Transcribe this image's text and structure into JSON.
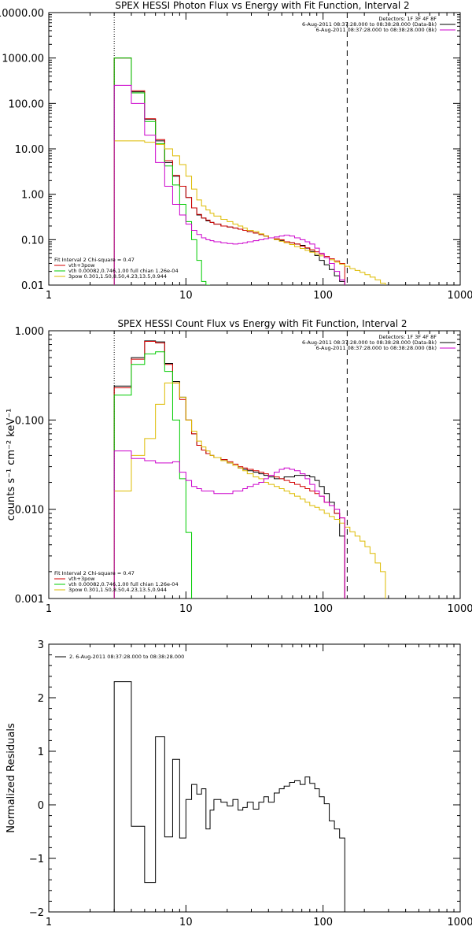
{
  "chart_data": [
    {
      "type": "line",
      "title": "SPEX HESSI Photon Flux vs Energy with Fit Function, Interval 2",
      "xlabel": "",
      "ylabel": "",
      "xlim": [
        1,
        1000
      ],
      "ylim": [
        0.01,
        10000
      ],
      "xscale": "log",
      "yscale": "log",
      "xticks": [
        "1",
        "10",
        "100",
        "1000"
      ],
      "yticks": [
        "0.01",
        "0.10",
        "1.00",
        "10.00",
        "100.00",
        "1000.00",
        "10000.00"
      ],
      "vlines": [
        {
          "x": 3,
          "style": "dotted"
        },
        {
          "x": 150,
          "style": "dashed"
        }
      ],
      "legend_top_right": {
        "header": "Detectors: 1F 3F 4F 8F",
        "entries": [
          {
            "text": "6-Aug-2011 08:37:28.000 to 08:38:28.000 (Data-Bk)",
            "color": "#000000"
          },
          {
            "text": "6-Aug-2011 08:37:28.000 to 08:38:28.000 (Bk)",
            "color": "#cc00cc"
          }
        ]
      },
      "legend_bottom_left": {
        "header": "Fit Interval 2   Chi-square = 0.47",
        "entries": [
          {
            "text": "vth+3pow",
            "color": "#d40000"
          },
          {
            "text": "vth 0.00082,0.746,1.00   full chian 1.26e-04",
            "color": "#00cc00"
          },
          {
            "text": "3pow 0.301,1.50,8.50,4.23,13.5,0.944",
            "color": "#ddbb00"
          }
        ]
      },
      "edges": [
        3,
        4,
        5,
        6,
        7,
        8,
        9,
        10,
        11,
        12,
        13,
        14,
        15,
        16,
        18,
        20,
        22,
        24,
        26,
        28,
        31,
        34,
        37,
        40,
        44,
        48,
        52,
        57,
        62,
        68,
        74,
        80,
        87,
        94,
        102,
        111,
        121,
        132,
        144,
        157,
        171,
        186,
        202,
        220,
        240,
        262,
        285
      ],
      "series": [
        {
          "name": "Data-Bk",
          "color": "#000000",
          "values": [
            1000,
            180,
            45,
            15,
            5,
            2.5,
            1.5,
            0.85,
            0.5,
            0.35,
            0.3,
            0.26,
            0.24,
            0.22,
            0.2,
            0.19,
            0.18,
            0.17,
            0.16,
            0.15,
            0.14,
            0.13,
            0.12,
            0.11,
            0.1,
            0.095,
            0.09,
            0.085,
            0.08,
            0.075,
            0.065,
            0.055,
            0.045,
            0.035,
            0.028,
            0.022,
            0.016,
            0.012
          ]
        },
        {
          "name": "vth+3pow",
          "color": "#d40000",
          "values": [
            1000,
            190,
            46,
            16,
            5.5,
            2.6,
            1.5,
            0.85,
            0.5,
            0.36,
            0.3,
            0.27,
            0.24,
            0.22,
            0.2,
            0.19,
            0.18,
            0.17,
            0.16,
            0.15,
            0.14,
            0.13,
            0.12,
            0.11,
            0.105,
            0.1,
            0.09,
            0.085,
            0.08,
            0.072,
            0.066,
            0.06,
            0.054,
            0.048,
            0.043,
            0.038,
            0.034,
            0.03
          ]
        },
        {
          "name": "vth",
          "color": "#00cc00",
          "values": [
            1000,
            170,
            40,
            13,
            4.2,
            1.6,
            0.6,
            0.25,
            0.1,
            0.035,
            0.012,
            0.005
          ]
        },
        {
          "name": "3pow",
          "color": "#ddbb00",
          "values": [
            15,
            15,
            14,
            12.5,
            10,
            7,
            4.5,
            2.5,
            1.3,
            0.75,
            0.55,
            0.45,
            0.38,
            0.33,
            0.28,
            0.25,
            0.22,
            0.2,
            0.18,
            0.16,
            0.15,
            0.135,
            0.12,
            0.11,
            0.1,
            0.092,
            0.085,
            0.078,
            0.07,
            0.064,
            0.058,
            0.053,
            0.048,
            0.044,
            0.04,
            0.036,
            0.032,
            0.029,
            0.026,
            0.023,
            0.021,
            0.019,
            0.017,
            0.015,
            0.013,
            0.011
          ]
        },
        {
          "name": "Bk",
          "color": "#cc00cc",
          "values": [
            250,
            100,
            20,
            5,
            1.5,
            0.6,
            0.35,
            0.22,
            0.16,
            0.13,
            0.11,
            0.1,
            0.095,
            0.09,
            0.085,
            0.082,
            0.08,
            0.082,
            0.085,
            0.09,
            0.095,
            0.1,
            0.105,
            0.11,
            0.115,
            0.12,
            0.125,
            0.12,
            0.11,
            0.1,
            0.09,
            0.08,
            0.065,
            0.05,
            0.04,
            0.03,
            0.02,
            0.013
          ]
        }
      ]
    },
    {
      "type": "line",
      "title": "SPEX HESSI Count Flux vs Energy with Fit Function, Interval 2",
      "xlabel": "",
      "ylabel": "counts s⁻¹ cm⁻² keV⁻¹",
      "xlim": [
        1,
        1000
      ],
      "ylim": [
        0.001,
        1
      ],
      "xscale": "log",
      "yscale": "log",
      "xticks": [
        "1",
        "10",
        "100",
        "1000"
      ],
      "yticks": [
        "0.001",
        "0.010",
        "0.100",
        "1.000"
      ],
      "vlines": [
        {
          "x": 3,
          "style": "dotted"
        },
        {
          "x": 150,
          "style": "dashed"
        }
      ],
      "legend_top_right": {
        "header": "Detectors: 1F 3F 4F 8F",
        "entries": [
          {
            "text": "6-Aug-2011 08:37:28.000 to 08:38:28.000 (Data-Bk)",
            "color": "#000000"
          },
          {
            "text": "6-Aug-2011 08:37:28.000 to 08:38:28.000 (Bk)",
            "color": "#cc00cc"
          }
        ]
      },
      "legend_bottom_left": {
        "header": "Fit Interval 2   Chi-square = 0.47",
        "entries": [
          {
            "text": "vth+3pow",
            "color": "#d40000"
          },
          {
            "text": "vth 0.00082,0.746,1.00   full chian 1.26e-04",
            "color": "#00cc00"
          },
          {
            "text": "3pow 0.301,1.50,8.50,4.23,13.5,0.944",
            "color": "#ddbb00"
          }
        ]
      },
      "edges": [
        3,
        4,
        5,
        6,
        7,
        8,
        9,
        10,
        11,
        12,
        13,
        14,
        15,
        16,
        18,
        20,
        22,
        24,
        26,
        28,
        31,
        34,
        37,
        40,
        44,
        48,
        52,
        57,
        62,
        68,
        74,
        80,
        87,
        94,
        102,
        111,
        121,
        132,
        144,
        157,
        171,
        186,
        202,
        220,
        240,
        262,
        285
      ],
      "series": [
        {
          "name": "Data-Bk",
          "color": "#000000",
          "values": [
            0.24,
            0.5,
            0.77,
            0.75,
            0.43,
            0.27,
            0.18,
            0.1,
            0.07,
            0.052,
            0.046,
            0.042,
            0.04,
            0.038,
            0.036,
            0.033,
            0.031,
            0.029,
            0.028,
            0.027,
            0.026,
            0.025,
            0.024,
            0.023,
            0.022,
            0.022,
            0.023,
            0.023,
            0.024,
            0.024,
            0.024,
            0.023,
            0.021,
            0.018,
            0.015,
            0.012,
            0.009,
            0.005
          ]
        },
        {
          "name": "vth+3pow",
          "color": "#d40000",
          "values": [
            0.23,
            0.48,
            0.76,
            0.73,
            0.42,
            0.26,
            0.17,
            0.1,
            0.07,
            0.052,
            0.046,
            0.042,
            0.04,
            0.038,
            0.036,
            0.034,
            0.032,
            0.03,
            0.029,
            0.028,
            0.027,
            0.026,
            0.025,
            0.024,
            0.023,
            0.022,
            0.021,
            0.02,
            0.019,
            0.018,
            0.017,
            0.016,
            0.015,
            0.014,
            0.012,
            0.011,
            0.009,
            0.008
          ]
        },
        {
          "name": "vth",
          "color": "#00cc00",
          "values": [
            0.19,
            0.42,
            0.55,
            0.58,
            0.35,
            0.1,
            0.022,
            0.0055
          ]
        },
        {
          "name": "3pow",
          "color": "#ddbb00",
          "values": [
            0.016,
            0.04,
            0.062,
            0.15,
            0.26,
            0.26,
            0.18,
            0.1,
            0.075,
            0.058,
            0.05,
            0.045,
            0.04,
            0.038,
            0.035,
            0.033,
            0.031,
            0.029,
            0.027,
            0.025,
            0.023,
            0.022,
            0.02,
            0.019,
            0.018,
            0.017,
            0.016,
            0.015,
            0.014,
            0.013,
            0.012,
            0.011,
            0.0105,
            0.0098,
            0.009,
            0.0083,
            0.0077,
            0.007,
            0.0063,
            0.0056,
            0.005,
            0.0044,
            0.0038,
            0.0032,
            0.0025,
            0.002
          ]
        },
        {
          "name": "Bk",
          "color": "#cc00cc",
          "values": [
            0.045,
            0.037,
            0.035,
            0.033,
            0.033,
            0.034,
            0.026,
            0.021,
            0.018,
            0.017,
            0.016,
            0.016,
            0.016,
            0.015,
            0.015,
            0.015,
            0.016,
            0.016,
            0.017,
            0.018,
            0.019,
            0.02,
            0.022,
            0.024,
            0.026,
            0.028,
            0.029,
            0.028,
            0.027,
            0.025,
            0.022,
            0.019,
            0.016,
            0.014,
            0.012,
            0.011,
            0.01,
            0.008
          ]
        }
      ]
    },
    {
      "type": "line",
      "title": "",
      "xlabel": "",
      "ylabel": "Normalized Residuals",
      "xlim": [
        1,
        1000
      ],
      "ylim": [
        -2,
        3
      ],
      "xscale": "log",
      "yscale": "linear",
      "xticks": [
        "1",
        "10",
        "100",
        "1000"
      ],
      "yticks": [
        "−2",
        "−1",
        "0",
        "1",
        "2",
        "3"
      ],
      "legend_top_left": {
        "entries": [
          {
            "text": "2.  6-Aug-2011 08:37:28.000 to 08:38:28.000",
            "color": "#000000"
          }
        ]
      },
      "edges": [
        3,
        4,
        5,
        6,
        7,
        8,
        9,
        10,
        11,
        12,
        13,
        14,
        15,
        16,
        18,
        20,
        22,
        24,
        26,
        28,
        31,
        34,
        37,
        40,
        44,
        48,
        52,
        57,
        62,
        68,
        74,
        80,
        87,
        94,
        102,
        111,
        121,
        132,
        144,
        157
      ],
      "series": [
        {
          "name": "",
          "color": "#000000",
          "values": [
            2.3,
            -0.4,
            -1.45,
            1.27,
            -0.6,
            0.85,
            -0.62,
            0.1,
            0.38,
            0.2,
            0.3,
            -0.45,
            -0.1,
            0.1,
            0.05,
            -0.02,
            0.1,
            -0.1,
            -0.05,
            0.05,
            -0.08,
            0.05,
            0.15,
            0.05,
            0.22,
            0.3,
            0.35,
            0.42,
            0.45,
            0.38,
            0.52,
            0.4,
            0.3,
            0.15,
            0.02,
            -0.3,
            -0.45,
            -0.62,
            -2
          ]
        }
      ]
    }
  ]
}
